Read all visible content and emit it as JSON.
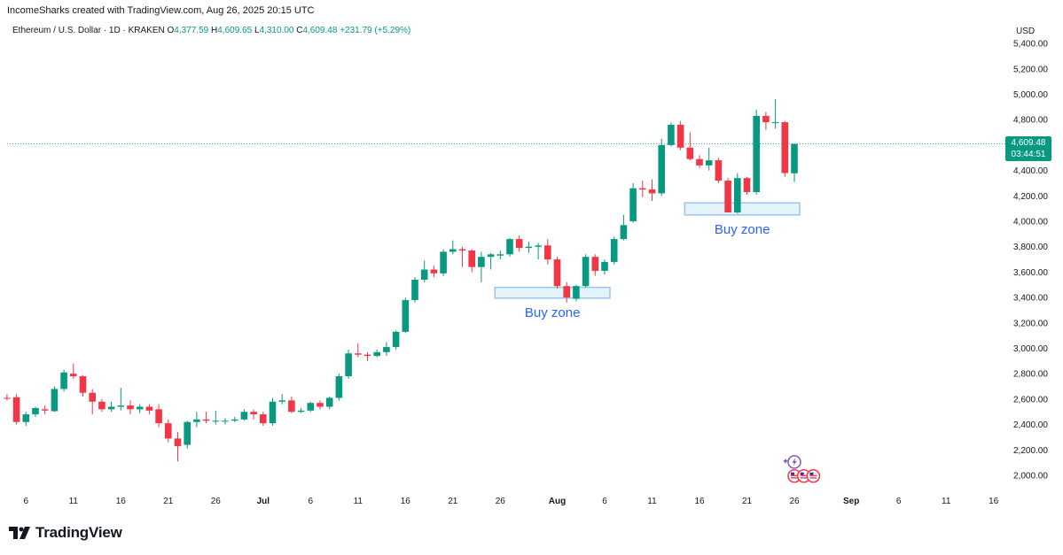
{
  "header": {
    "credit": "IncomeSharks created with TradingView.com, Aug 26, 2025 20:15 UTC",
    "symbol": "Ethereum / U.S. Dollar · 1D · KRAKEN",
    "o_label": "O",
    "o_value": "4,377.59",
    "h_label": "H",
    "h_value": "4,609.65",
    "l_label": "L",
    "l_value": "4,310.00",
    "c_label": "C",
    "c_value": "4,609.48",
    "change": "+231.79 (+5.29%)"
  },
  "price_axis": {
    "currency": "USD"
  },
  "last_price": {
    "price": "4,609.48",
    "countdown": "03:44:51",
    "value": 4609.48
  },
  "logo": {
    "text": "TradingView"
  },
  "colors": {
    "up": "#089981",
    "down": "#f23645",
    "zone_fill": "#e3f2fd",
    "zone_stroke": "#90bfe8",
    "zone_text": "#2962ff",
    "last_line": "#089981"
  },
  "chart_data": {
    "type": "candlestick",
    "ylim": [
      1900,
      5450
    ],
    "y_ticks": [
      2000,
      2200,
      2400,
      2600,
      2800,
      3000,
      3200,
      3400,
      3600,
      3800,
      4000,
      4200,
      4400,
      4600,
      4800,
      5000,
      5200,
      5400
    ],
    "y_tick_labels": [
      "2,000.00",
      "2,200.00",
      "2,400.00",
      "2,600.00",
      "2,800.00",
      "3,000.00",
      "3,200.00",
      "3,400.00",
      "3,600.00",
      "3,800.00",
      "4,000.00",
      "4,200.00",
      "4,400.00",
      "",
      "4,800.00",
      "5,000.00",
      "5,200.00",
      "5,400.00"
    ],
    "x_ticks": [
      {
        "label": "6",
        "date": "2025-06-06"
      },
      {
        "label": "11",
        "date": "2025-06-11"
      },
      {
        "label": "16",
        "date": "2025-06-16"
      },
      {
        "label": "21",
        "date": "2025-06-21"
      },
      {
        "label": "26",
        "date": "2025-06-26"
      },
      {
        "label": "Jul",
        "date": "2025-07-01"
      },
      {
        "label": "6",
        "date": "2025-07-06"
      },
      {
        "label": "11",
        "date": "2025-07-11"
      },
      {
        "label": "16",
        "date": "2025-07-16"
      },
      {
        "label": "21",
        "date": "2025-07-21"
      },
      {
        "label": "26",
        "date": "2025-07-26"
      },
      {
        "label": "Aug",
        "date": "2025-08-01"
      },
      {
        "label": "6",
        "date": "2025-08-06"
      },
      {
        "label": "11",
        "date": "2025-08-11"
      },
      {
        "label": "16",
        "date": "2025-08-16"
      },
      {
        "label": "21",
        "date": "2025-08-21"
      },
      {
        "label": "26",
        "date": "2025-08-26"
      },
      {
        "label": "Sep",
        "date": "2025-09-01"
      },
      {
        "label": "6",
        "date": "2025-09-06"
      },
      {
        "label": "11",
        "date": "2025-09-11"
      },
      {
        "label": "16",
        "date": "2025-09-16"
      }
    ],
    "candles": [
      {
        "date": "2025-06-04",
        "o": 2610,
        "h": 2640,
        "l": 2590,
        "c": 2605
      },
      {
        "date": "2025-06-05",
        "o": 2615,
        "h": 2640,
        "l": 2400,
        "c": 2420
      },
      {
        "date": "2025-06-06",
        "o": 2420,
        "h": 2500,
        "l": 2390,
        "c": 2480
      },
      {
        "date": "2025-06-07",
        "o": 2480,
        "h": 2540,
        "l": 2460,
        "c": 2530
      },
      {
        "date": "2025-06-08",
        "o": 2520,
        "h": 2550,
        "l": 2480,
        "c": 2510
      },
      {
        "date": "2025-06-09",
        "o": 2505,
        "h": 2700,
        "l": 2500,
        "c": 2680
      },
      {
        "date": "2025-06-10",
        "o": 2680,
        "h": 2830,
        "l": 2660,
        "c": 2810
      },
      {
        "date": "2025-06-11",
        "o": 2800,
        "h": 2880,
        "l": 2760,
        "c": 2780
      },
      {
        "date": "2025-06-12",
        "o": 2780,
        "h": 2790,
        "l": 2620,
        "c": 2650
      },
      {
        "date": "2025-06-13",
        "o": 2650,
        "h": 2680,
        "l": 2480,
        "c": 2580
      },
      {
        "date": "2025-06-14",
        "o": 2580,
        "h": 2600,
        "l": 2500,
        "c": 2520
      },
      {
        "date": "2025-06-15",
        "o": 2520,
        "h": 2580,
        "l": 2500,
        "c": 2540
      },
      {
        "date": "2025-06-16",
        "o": 2540,
        "h": 2690,
        "l": 2510,
        "c": 2550
      },
      {
        "date": "2025-06-17",
        "o": 2550,
        "h": 2590,
        "l": 2480,
        "c": 2520
      },
      {
        "date": "2025-06-18",
        "o": 2520,
        "h": 2560,
        "l": 2490,
        "c": 2540
      },
      {
        "date": "2025-06-19",
        "o": 2540,
        "h": 2560,
        "l": 2480,
        "c": 2510
      },
      {
        "date": "2025-06-20",
        "o": 2520,
        "h": 2560,
        "l": 2380,
        "c": 2410
      },
      {
        "date": "2025-06-21",
        "o": 2410,
        "h": 2440,
        "l": 2260,
        "c": 2290
      },
      {
        "date": "2025-06-22",
        "o": 2290,
        "h": 2340,
        "l": 2110,
        "c": 2230
      },
      {
        "date": "2025-06-23",
        "o": 2240,
        "h": 2430,
        "l": 2210,
        "c": 2420
      },
      {
        "date": "2025-06-24",
        "o": 2420,
        "h": 2500,
        "l": 2380,
        "c": 2440
      },
      {
        "date": "2025-06-25",
        "o": 2440,
        "h": 2500,
        "l": 2410,
        "c": 2430
      },
      {
        "date": "2025-06-26",
        "o": 2430,
        "h": 2510,
        "l": 2400,
        "c": 2430
      },
      {
        "date": "2025-06-27",
        "o": 2425,
        "h": 2450,
        "l": 2400,
        "c": 2430
      },
      {
        "date": "2025-06-28",
        "o": 2430,
        "h": 2460,
        "l": 2420,
        "c": 2440
      },
      {
        "date": "2025-06-29",
        "o": 2440,
        "h": 2520,
        "l": 2430,
        "c": 2500
      },
      {
        "date": "2025-06-30",
        "o": 2500,
        "h": 2520,
        "l": 2440,
        "c": 2480
      },
      {
        "date": "2025-07-01",
        "o": 2480,
        "h": 2500,
        "l": 2390,
        "c": 2410
      },
      {
        "date": "2025-07-02",
        "o": 2410,
        "h": 2610,
        "l": 2390,
        "c": 2580
      },
      {
        "date": "2025-07-03",
        "o": 2580,
        "h": 2640,
        "l": 2560,
        "c": 2590
      },
      {
        "date": "2025-07-04",
        "o": 2590,
        "h": 2620,
        "l": 2490,
        "c": 2500
      },
      {
        "date": "2025-07-05",
        "o": 2500,
        "h": 2530,
        "l": 2490,
        "c": 2510
      },
      {
        "date": "2025-07-06",
        "o": 2510,
        "h": 2580,
        "l": 2500,
        "c": 2570
      },
      {
        "date": "2025-07-07",
        "o": 2570,
        "h": 2590,
        "l": 2520,
        "c": 2540
      },
      {
        "date": "2025-07-08",
        "o": 2540,
        "h": 2620,
        "l": 2520,
        "c": 2610
      },
      {
        "date": "2025-07-09",
        "o": 2610,
        "h": 2800,
        "l": 2590,
        "c": 2780
      },
      {
        "date": "2025-07-10",
        "o": 2780,
        "h": 2990,
        "l": 2760,
        "c": 2960
      },
      {
        "date": "2025-07-11",
        "o": 2960,
        "h": 3040,
        "l": 2930,
        "c": 2950
      },
      {
        "date": "2025-07-12",
        "o": 2950,
        "h": 2970,
        "l": 2900,
        "c": 2940
      },
      {
        "date": "2025-07-13",
        "o": 2940,
        "h": 2990,
        "l": 2930,
        "c": 2970
      },
      {
        "date": "2025-07-14",
        "o": 2970,
        "h": 3050,
        "l": 2940,
        "c": 3010
      },
      {
        "date": "2025-07-15",
        "o": 3010,
        "h": 3140,
        "l": 2990,
        "c": 3130
      },
      {
        "date": "2025-07-16",
        "o": 3130,
        "h": 3400,
        "l": 3120,
        "c": 3380
      },
      {
        "date": "2025-07-17",
        "o": 3380,
        "h": 3560,
        "l": 3360,
        "c": 3540
      },
      {
        "date": "2025-07-18",
        "o": 3540,
        "h": 3690,
        "l": 3520,
        "c": 3620
      },
      {
        "date": "2025-07-19",
        "o": 3620,
        "h": 3650,
        "l": 3560,
        "c": 3590
      },
      {
        "date": "2025-07-20",
        "o": 3590,
        "h": 3780,
        "l": 3570,
        "c": 3760
      },
      {
        "date": "2025-07-21",
        "o": 3760,
        "h": 3850,
        "l": 3740,
        "c": 3780
      },
      {
        "date": "2025-07-22",
        "o": 3780,
        "h": 3800,
        "l": 3640,
        "c": 3770
      },
      {
        "date": "2025-07-23",
        "o": 3770,
        "h": 3780,
        "l": 3600,
        "c": 3640
      },
      {
        "date": "2025-07-24",
        "o": 3640,
        "h": 3760,
        "l": 3520,
        "c": 3720
      },
      {
        "date": "2025-07-25",
        "o": 3720,
        "h": 3750,
        "l": 3620,
        "c": 3740
      },
      {
        "date": "2025-07-26",
        "o": 3730,
        "h": 3770,
        "l": 3700,
        "c": 3740
      },
      {
        "date": "2025-07-27",
        "o": 3740,
        "h": 3870,
        "l": 3720,
        "c": 3860
      },
      {
        "date": "2025-07-28",
        "o": 3860,
        "h": 3890,
        "l": 3760,
        "c": 3790
      },
      {
        "date": "2025-07-29",
        "o": 3790,
        "h": 3840,
        "l": 3750,
        "c": 3800
      },
      {
        "date": "2025-07-30",
        "o": 3800,
        "h": 3830,
        "l": 3700,
        "c": 3810
      },
      {
        "date": "2025-07-31",
        "o": 3810,
        "h": 3860,
        "l": 3660,
        "c": 3700
      },
      {
        "date": "2025-08-01",
        "o": 3700,
        "h": 3720,
        "l": 3470,
        "c": 3490
      },
      {
        "date": "2025-08-02",
        "o": 3490,
        "h": 3520,
        "l": 3360,
        "c": 3400
      },
      {
        "date": "2025-08-03",
        "o": 3390,
        "h": 3500,
        "l": 3370,
        "c": 3490
      },
      {
        "date": "2025-08-04",
        "o": 3490,
        "h": 3740,
        "l": 3480,
        "c": 3720
      },
      {
        "date": "2025-08-05",
        "o": 3720,
        "h": 3740,
        "l": 3570,
        "c": 3610
      },
      {
        "date": "2025-08-06",
        "o": 3610,
        "h": 3700,
        "l": 3580,
        "c": 3680
      },
      {
        "date": "2025-08-07",
        "o": 3680,
        "h": 3880,
        "l": 3660,
        "c": 3860
      },
      {
        "date": "2025-08-08",
        "o": 3860,
        "h": 4050,
        "l": 3850,
        "c": 3970
      },
      {
        "date": "2025-08-09",
        "o": 4000,
        "h": 4300,
        "l": 3990,
        "c": 4260
      },
      {
        "date": "2025-08-10",
        "o": 4260,
        "h": 4320,
        "l": 4190,
        "c": 4250
      },
      {
        "date": "2025-08-11",
        "o": 4250,
        "h": 4330,
        "l": 4160,
        "c": 4220
      },
      {
        "date": "2025-08-12",
        "o": 4220,
        "h": 4650,
        "l": 4200,
        "c": 4600
      },
      {
        "date": "2025-08-13",
        "o": 4600,
        "h": 4780,
        "l": 4590,
        "c": 4760
      },
      {
        "date": "2025-08-14",
        "o": 4760,
        "h": 4790,
        "l": 4560,
        "c": 4580
      },
      {
        "date": "2025-08-15",
        "o": 4580,
        "h": 4700,
        "l": 4480,
        "c": 4490
      },
      {
        "date": "2025-08-16",
        "o": 4490,
        "h": 4520,
        "l": 4420,
        "c": 4440
      },
      {
        "date": "2025-08-17",
        "o": 4440,
        "h": 4580,
        "l": 4400,
        "c": 4480
      },
      {
        "date": "2025-08-18",
        "o": 4480,
        "h": 4500,
        "l": 4300,
        "c": 4320
      },
      {
        "date": "2025-08-19",
        "o": 4320,
        "h": 4340,
        "l": 4070,
        "c": 4070
      },
      {
        "date": "2025-08-20",
        "o": 4070,
        "h": 4380,
        "l": 4060,
        "c": 4340
      },
      {
        "date": "2025-08-21",
        "o": 4340,
        "h": 4350,
        "l": 4210,
        "c": 4230
      },
      {
        "date": "2025-08-22",
        "o": 4230,
        "h": 4880,
        "l": 4210,
        "c": 4830
      },
      {
        "date": "2025-08-23",
        "o": 4830,
        "h": 4860,
        "l": 4720,
        "c": 4780
      },
      {
        "date": "2025-08-24",
        "o": 4780,
        "h": 4960,
        "l": 4730,
        "c": 4780
      },
      {
        "date": "2025-08-25",
        "o": 4780,
        "h": 4790,
        "l": 4350,
        "c": 4380
      },
      {
        "date": "2025-08-26",
        "o": 4377.59,
        "h": 4609.65,
        "l": 4310,
        "c": 4609.48
      }
    ],
    "zones": [
      {
        "label": "Buy zone",
        "from": "2025-07-26",
        "to": "2025-08-06",
        "low": 3395,
        "high": 3480
      },
      {
        "label": "Buy zone",
        "from": "2025-08-15",
        "to": "2025-08-26",
        "low": 4050,
        "high": 4145
      }
    ],
    "events": [
      {
        "type": "earnings",
        "date": "2025-08-26",
        "price": 2105,
        "icon": "lightning-icon"
      },
      {
        "type": "us-economic",
        "date": "2025-08-26",
        "price": 1995,
        "icon": "us-flag-icon"
      },
      {
        "type": "us-economic",
        "date": "2025-08-27",
        "price": 1995,
        "icon": "us-flag-icon"
      },
      {
        "type": "us-economic",
        "date": "2025-08-28",
        "price": 1995,
        "icon": "us-flag-icon"
      }
    ]
  }
}
